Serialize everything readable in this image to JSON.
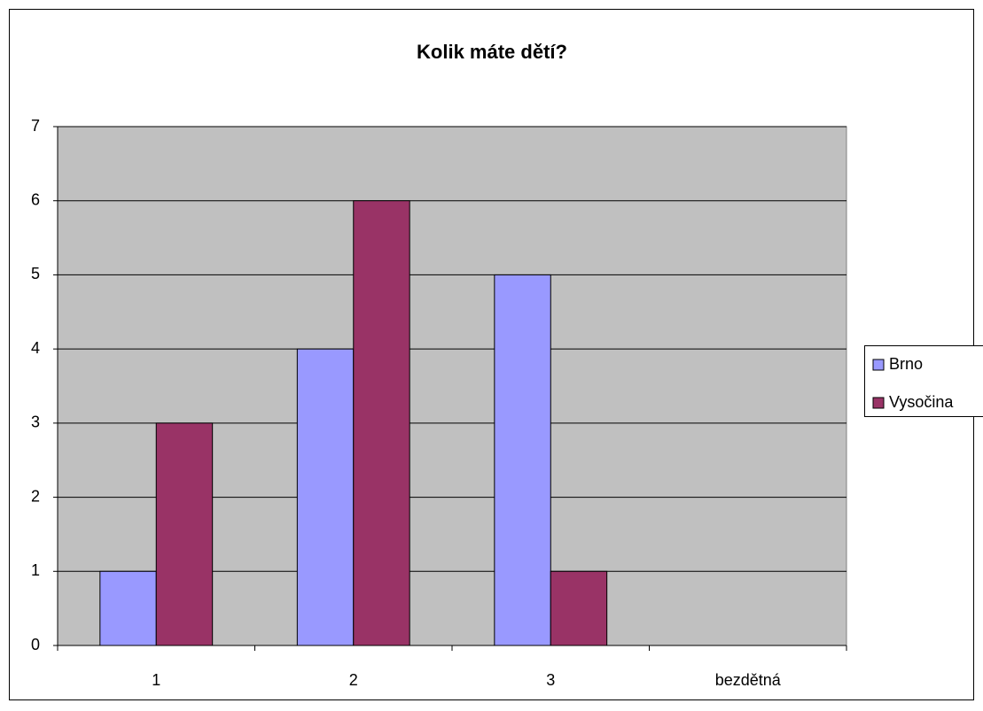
{
  "chart_data": {
    "type": "bar",
    "title": "Kolik máte dětí?",
    "categories": [
      "1",
      "2",
      "3",
      "bezdětná"
    ],
    "series": [
      {
        "name": "Brno",
        "color": "#9999ff",
        "values": [
          1,
          4,
          5,
          0
        ]
      },
      {
        "name": "Vysočina",
        "color": "#993366",
        "values": [
          3,
          6,
          1,
          0
        ]
      }
    ],
    "ylim": [
      0,
      7
    ],
    "yticks": [
      0,
      1,
      2,
      3,
      4,
      5,
      6,
      7
    ],
    "grid": true,
    "legend": "right"
  }
}
